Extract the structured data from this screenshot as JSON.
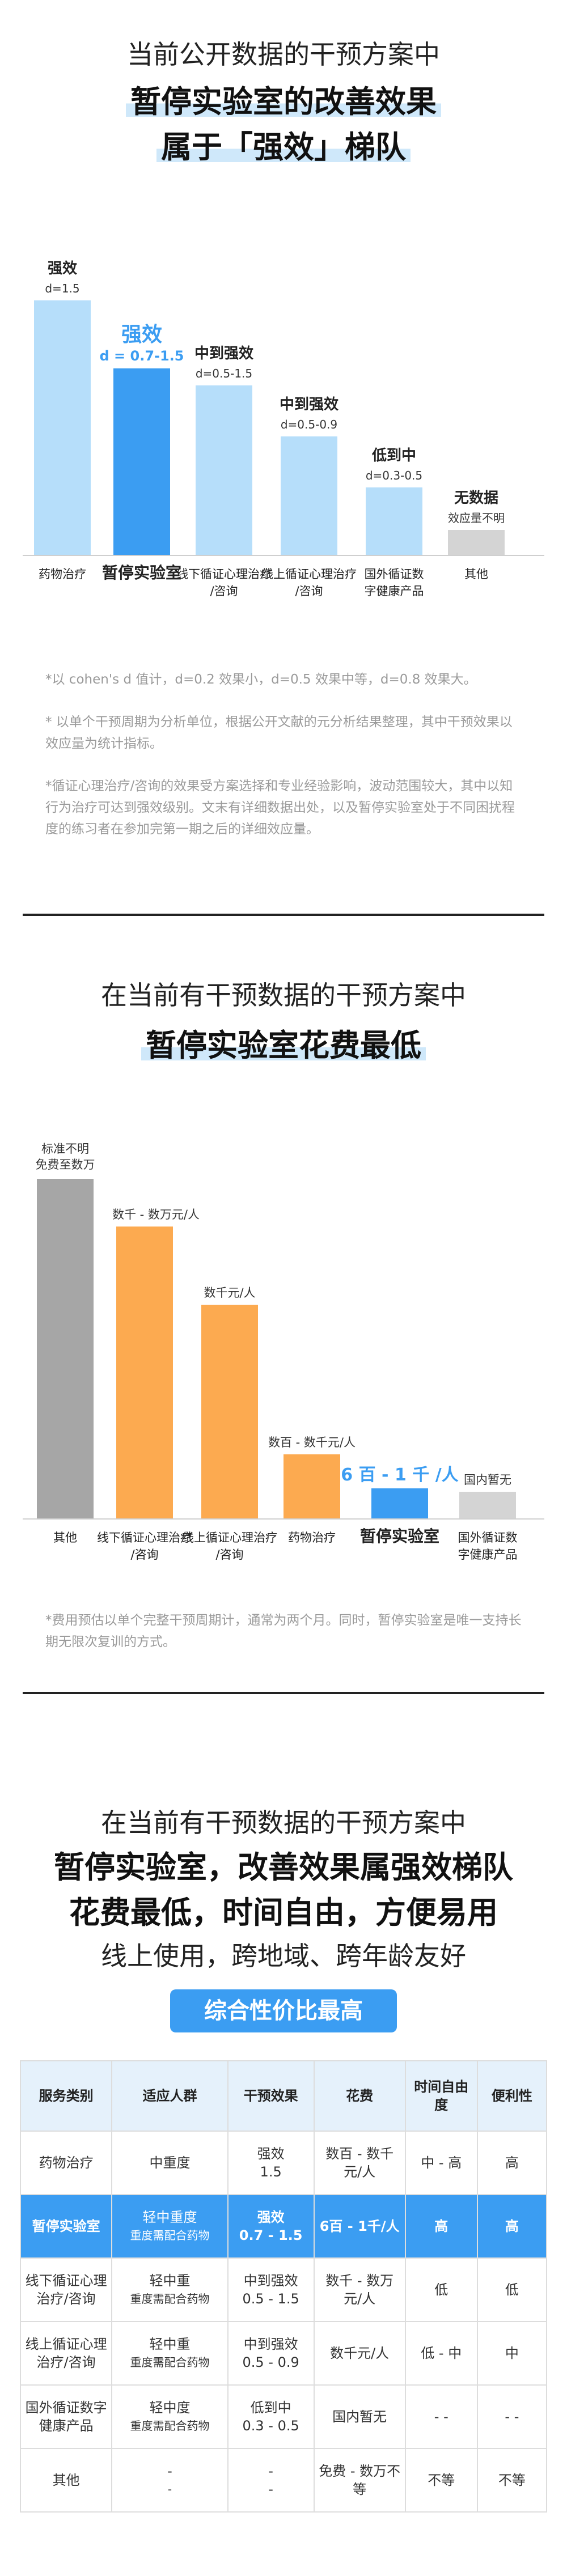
{
  "section1": {
    "title_line1": "当前公开数据的干预方案中",
    "title_line2": "暂停实验室的改善效果",
    "title_line3": "属于「强效」梯队",
    "notes": [
      "*以 cohen's d 值计，d=0.2 效果小，d=0.5 效果中等，d=0.8 效果大。",
      "* 以单个干预周期为分析单位，根据公开文献的元分析结果整理，其中干预效果以效应量为统计指标。",
      "*循证心理治疗/咨询的效果受方案选择和专业经验影响，波动范围较大，其中以知行为治疗可达到强效级别。文末有详细数据出处，以及暂停实验室处于不同困扰程度的练习者在参加完第一期之后的详细效应量。"
    ]
  },
  "section2": {
    "title_line1": "在当前有干预数据的干预方案中",
    "title_line2": "暂停实验室花费最低",
    "notes": [
      "*费用预估以单个完整干预周期计，通常为两个月。同时，暂停实验室是唯一支持长期无限次复训的方式。"
    ]
  },
  "section3": {
    "title_line1": "在当前有干预数据的干预方案中",
    "title_line2": "暂停实验室，改善效果属强效梯队",
    "title_line3": "花费最低，时间自由，方便易用",
    "title_line4": "线上使用，跨地域、跨年龄友好",
    "badge": "综合性价比最高"
  },
  "chart_data": [
    {
      "type": "bar",
      "title": "",
      "categories": [
        "药物治疗",
        "暂停实验室",
        "线下循证心理治疗/咨询",
        "线上循证心理治疗/咨询",
        "国外循证数字健康产品",
        "其他"
      ],
      "values": [
        1.5,
        1.1,
        1.0,
        0.7,
        0.4,
        0.15
      ],
      "top_labels": [
        "强效",
        "强效",
        "中到强效",
        "中到强效",
        "低到中",
        "无数据"
      ],
      "value_labels": [
        "d=1.5",
        "d = 0.7-1.5",
        "d=0.5-1.5",
        "d=0.5-0.9",
        "d=0.3-0.5",
        "效应量不明"
      ],
      "highlight_index": 1,
      "colors": {
        "normal": "#b6defa",
        "highlight": "#3b9df2",
        "nodata": "#d4d4d4"
      }
    },
    {
      "type": "bar",
      "title": "",
      "categories": [
        "其他",
        "线下循证心理治疗/咨询",
        "线上循证心理治疗/咨询",
        "药物治疗",
        "暂停实验室",
        "国外循证数字健康产品"
      ],
      "values": [
        100,
        86,
        63,
        19,
        9,
        8
      ],
      "value_labels": [
        "标准不明 免费至数万",
        "数千 - 数万元/人",
        "数千元/人",
        "数百 - 数千元/人",
        "6 百 - 1 千 /人",
        "国内暂无"
      ],
      "highlight_index": 4,
      "colors": {
        "normal": "#fcaa50",
        "highlight": "#3b9df2",
        "other": "#a6a6a6",
        "nodata": "#d4d4d4"
      }
    },
    {
      "type": "table",
      "columns": [
        "服务类别",
        "适应人群",
        "干预效果",
        "花费",
        "时间自由度",
        "便利性"
      ],
      "rows": [
        [
          "药物治疗",
          "中重度",
          "强效 1.5",
          "数百 - 数千元/人",
          "中 - 高",
          "高"
        ],
        [
          "暂停实验室",
          "轻中重度 重度需配合药物",
          "强效 0.7 - 1.5",
          "6百 - 1千/人",
          "高",
          "高"
        ],
        [
          "线下循证心理治疗/咨询",
          "轻中重 重度需配合药物",
          "中到强效 0.5 - 1.5",
          "数千 - 数万元/人",
          "低",
          "低"
        ],
        [
          "线上循证心理治疗/咨询",
          "轻中重 重度需配合药物",
          "中到强效 0.5 - 0.9",
          "数千元/人",
          "低 - 中",
          "中"
        ],
        [
          "国外循证数字健康产品",
          "轻中度 重度需配合药物",
          "低到中 0.3 - 0.5",
          "国内暂无",
          "- -",
          "- -"
        ],
        [
          "其他",
          "- -",
          "- -",
          "免费 - 数万不等",
          "不等",
          "不等"
        ]
      ]
    }
  ]
}
